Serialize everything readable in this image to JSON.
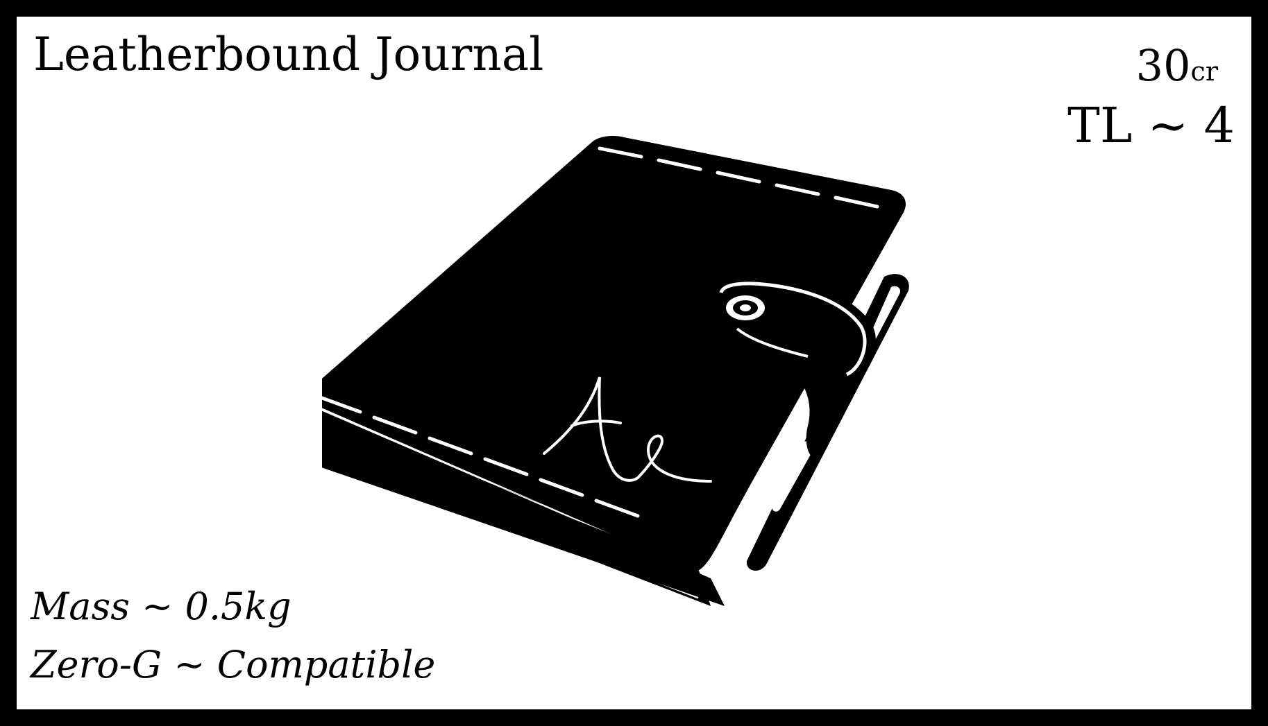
{
  "card": {
    "title": "Leatherbound Journal",
    "price": {
      "amount": "30",
      "unit": "cr"
    },
    "tech_level": "TL ~ 4",
    "stats": [
      "Mass ~ 0.5kg",
      "Zero-G ~ Compatible"
    ],
    "illustration": {
      "icon": "leatherbound-journal-icon",
      "monogram": "Ae"
    },
    "colors": {
      "ink": "#000000",
      "paper": "#ffffff"
    }
  }
}
